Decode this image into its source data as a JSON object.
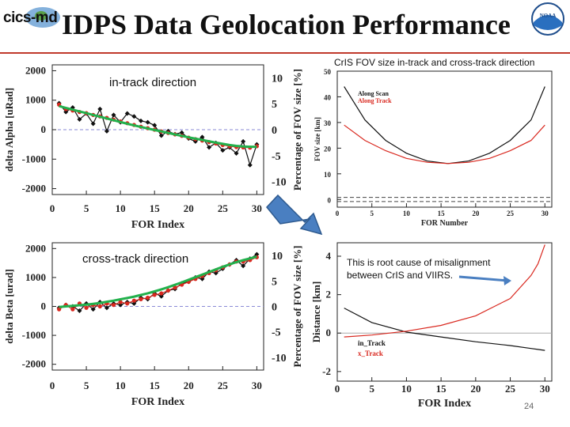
{
  "header": {
    "logo_text": "cics-md",
    "noaa_text": "NOAA",
    "title": "IDPS Data Geolocation Performance"
  },
  "labels": {
    "in_track": "in-track direction",
    "cross_track": "cross-track direction",
    "right_caption": "CrIS FOV size in-track and cross-track direction",
    "root_cause": "This is root cause of misalignment between CrIS and VIIRS.",
    "page_number": "24"
  },
  "colors": {
    "rule": "#c0392b",
    "green_fit": "#22b14c",
    "red_series": "#d9281f",
    "black_series": "#111111",
    "arrow_fill": "#4a7fc1",
    "arrow_stroke": "#2e5a8f"
  },
  "chart_data": [
    {
      "id": "alpha",
      "type": "line",
      "x": [
        1,
        2,
        3,
        4,
        5,
        6,
        7,
        8,
        9,
        10,
        11,
        12,
        13,
        14,
        15,
        16,
        17,
        18,
        19,
        20,
        21,
        22,
        23,
        24,
        25,
        26,
        27,
        28,
        29,
        30
      ],
      "series": [
        {
          "name": "black",
          "values": [
            900,
            600,
            750,
            350,
            550,
            200,
            700,
            -50,
            500,
            250,
            550,
            450,
            300,
            250,
            150,
            -200,
            -50,
            -150,
            -100,
            -300,
            -400,
            -250,
            -600,
            -450,
            -700,
            -600,
            -800,
            -400,
            -1200,
            -500
          ]
        },
        {
          "name": "red",
          "values": [
            850,
            700,
            650,
            600,
            560,
            500,
            450,
            400,
            340,
            280,
            220,
            160,
            100,
            50,
            0,
            -60,
            -110,
            -160,
            -210,
            -270,
            -320,
            -370,
            -420,
            -470,
            -520,
            -560,
            -590,
            -600,
            -610,
            -560
          ]
        },
        {
          "name": "green_fit",
          "values": [
            800,
            740,
            680,
            620,
            560,
            500,
            440,
            380,
            320,
            260,
            200,
            145,
            90,
            40,
            -10,
            -60,
            -110,
            -160,
            -210,
            -260,
            -305,
            -350,
            -395,
            -440,
            -480,
            -520,
            -550,
            -570,
            -580,
            -580
          ]
        }
      ],
      "xlabel": "FOR Index",
      "ylabel": "delta Alpha [uRad]",
      "y2label": "Percentage of FOV size [%]",
      "xlim": [
        0,
        31
      ],
      "ylim": [
        -2200,
        2200
      ],
      "xticks": [
        0,
        5,
        10,
        15,
        20,
        25,
        30
      ],
      "yticks": [
        2000,
        1000,
        0,
        -1000,
        -2000
      ],
      "y2ticks": [
        10,
        5,
        0,
        -5,
        -10
      ],
      "grid": false
    },
    {
      "id": "beta",
      "type": "line",
      "x": [
        1,
        2,
        3,
        4,
        5,
        6,
        7,
        8,
        9,
        10,
        11,
        12,
        13,
        14,
        15,
        16,
        17,
        18,
        19,
        20,
        21,
        22,
        23,
        24,
        25,
        26,
        27,
        28,
        29,
        30
      ],
      "series": [
        {
          "name": "black",
          "values": [
            -50,
            50,
            0,
            -150,
            100,
            -100,
            150,
            -50,
            100,
            50,
            150,
            100,
            300,
            250,
            450,
            350,
            550,
            600,
            800,
            850,
            1000,
            950,
            1200,
            1150,
            1300,
            1450,
            1600,
            1400,
            1650,
            1800
          ]
        },
        {
          "name": "red",
          "values": [
            -100,
            50,
            -100,
            100,
            -50,
            50,
            0,
            100,
            50,
            150,
            100,
            200,
            250,
            300,
            400,
            450,
            550,
            650,
            750,
            850,
            950,
            1050,
            1150,
            1250,
            1350,
            1450,
            1550,
            1550,
            1600,
            1700
          ]
        },
        {
          "name": "green_fit",
          "values": [
            -20,
            0,
            20,
            40,
            60,
            90,
            120,
            160,
            200,
            245,
            290,
            340,
            395,
            455,
            520,
            590,
            665,
            745,
            830,
            920,
            1010,
            1100,
            1190,
            1280,
            1370,
            1450,
            1530,
            1600,
            1660,
            1720
          ]
        }
      ],
      "xlabel": "FOR Index",
      "ylabel": "delta Beta [urad]",
      "y2label": "Percentage of FOV size [%]",
      "xlim": [
        0,
        31
      ],
      "ylim": [
        -2200,
        2200
      ],
      "xticks": [
        0,
        5,
        10,
        15,
        20,
        25,
        30
      ],
      "yticks": [
        2000,
        1000,
        0,
        -1000,
        -2000
      ],
      "y2ticks": [
        10,
        5,
        0,
        -5,
        -10
      ],
      "grid": false
    },
    {
      "id": "fov",
      "type": "line",
      "x": [
        1,
        4,
        7,
        10,
        13,
        16,
        19,
        22,
        25,
        28,
        30
      ],
      "series": [
        {
          "name": "Along Scan",
          "values": [
            44,
            31,
            23,
            18,
            15,
            14,
            15,
            18,
            23,
            31,
            44
          ]
        },
        {
          "name": "Along Track",
          "values": [
            29,
            23,
            19,
            16,
            14.5,
            14,
            14.5,
            16,
            19,
            23,
            29
          ]
        }
      ],
      "xlabel": "FOR Number",
      "ylabel": "FOV size [km]",
      "xlim": [
        0,
        31
      ],
      "ylim": [
        -3,
        50
      ],
      "xticks": [
        0,
        5,
        10,
        15,
        20,
        25,
        30
      ],
      "yticks": [
        50,
        40,
        30,
        20,
        10,
        0
      ],
      "grid": false
    },
    {
      "id": "distance",
      "type": "line",
      "x": [
        1,
        5,
        10,
        15,
        20,
        25,
        28,
        29,
        30
      ],
      "series": [
        {
          "name": "in_Track",
          "values": [
            1.3,
            0.55,
            0.05,
            -0.2,
            -0.45,
            -0.65,
            -0.8,
            -0.85,
            -0.9
          ]
        },
        {
          "name": "x_Track",
          "values": [
            -0.2,
            -0.1,
            0.1,
            0.4,
            0.9,
            1.8,
            3.0,
            3.6,
            4.6
          ]
        }
      ],
      "xlabel": "FOR Index",
      "ylabel": "Distance [km]",
      "xlim": [
        0,
        31
      ],
      "ylim": [
        -2.5,
        4.7
      ],
      "xticks": [
        0,
        5,
        10,
        15,
        20,
        25,
        30
      ],
      "yticks": [
        4,
        2,
        0,
        -2
      ],
      "grid": false
    }
  ]
}
